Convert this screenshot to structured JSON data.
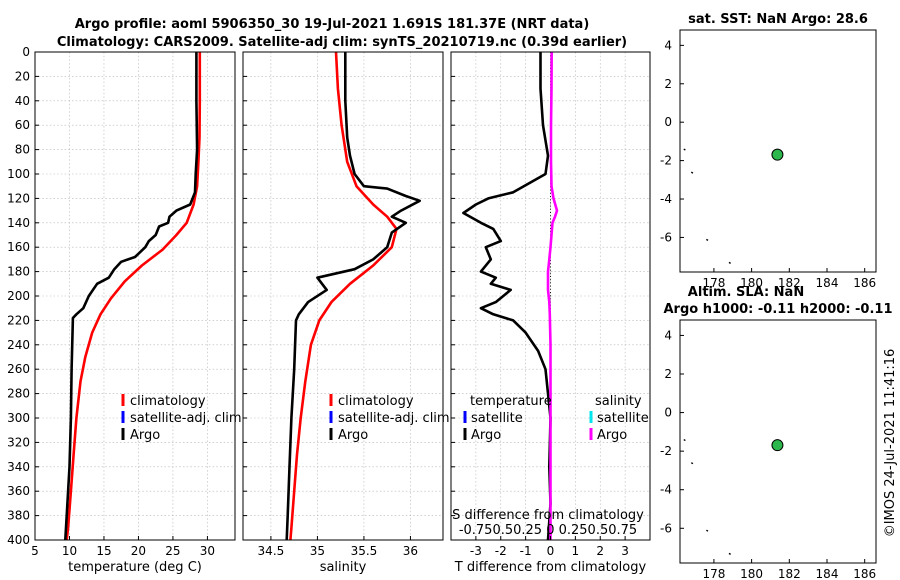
{
  "chart_data": [
    {
      "type": "line",
      "id": "temperature",
      "title_lines": [
        "Argo profile: aoml 5906350_30 19-Jul-2021 1.691S 181.37E (NRT data)",
        "Climatology: CARS2009. Satellite-adj clim: synTS_20210719.nc (0.39d earlier)"
      ],
      "xlabel": "temperature (deg C)",
      "xlim": [
        5,
        34
      ],
      "xticks": [
        5,
        10,
        15,
        20,
        25,
        30
      ],
      "ylim": [
        0,
        400
      ],
      "yticks": [
        0,
        20,
        40,
        60,
        80,
        100,
        120,
        140,
        160,
        180,
        200,
        220,
        240,
        260,
        280,
        300,
        320,
        340,
        360,
        380,
        400
      ],
      "grid": true,
      "legend": [
        "climatology",
        "satellite-adj. clim",
        "Argo"
      ],
      "series": [
        {
          "name": "climatology",
          "color": "#ff0000",
          "width": 2.6,
          "points": [
            [
              28.9,
              0
            ],
            [
              28.9,
              40
            ],
            [
              28.85,
              70
            ],
            [
              28.7,
              90
            ],
            [
              28.5,
              110
            ],
            [
              28.0,
              125
            ],
            [
              27.0,
              140
            ],
            [
              25.5,
              150
            ],
            [
              23.5,
              162
            ],
            [
              20.5,
              175
            ],
            [
              18.0,
              188
            ],
            [
              16.0,
              202
            ],
            [
              14.5,
              215
            ],
            [
              13.3,
              230
            ],
            [
              12.3,
              250
            ],
            [
              11.6,
              270
            ],
            [
              11.0,
              300
            ],
            [
              10.6,
              330
            ],
            [
              10.2,
              360
            ],
            [
              9.8,
              390
            ],
            [
              9.6,
              400
            ]
          ]
        },
        {
          "name": "Argo",
          "color": "#000000",
          "width": 2.6,
          "points": [
            [
              28.4,
              0
            ],
            [
              28.4,
              40
            ],
            [
              28.5,
              80
            ],
            [
              28.3,
              100
            ],
            [
              28.2,
              115
            ],
            [
              27.5,
              125
            ],
            [
              25.5,
              130
            ],
            [
              24.5,
              135
            ],
            [
              24.3,
              140
            ],
            [
              23.0,
              143
            ],
            [
              22.5,
              150
            ],
            [
              21.5,
              155
            ],
            [
              21.0,
              160
            ],
            [
              19.5,
              168
            ],
            [
              17.5,
              172
            ],
            [
              16.5,
              178
            ],
            [
              15.7,
              185
            ],
            [
              14.0,
              190
            ],
            [
              12.8,
              200
            ],
            [
              12.0,
              210
            ],
            [
              11.0,
              215
            ],
            [
              10.5,
              218
            ],
            [
              10.3,
              260
            ],
            [
              10.2,
              300
            ],
            [
              10.0,
              340
            ],
            [
              9.7,
              370
            ],
            [
              9.4,
              400
            ]
          ]
        }
      ]
    },
    {
      "type": "line",
      "id": "salinity",
      "xlabel": "salinity",
      "xlim": [
        34.2,
        36.35
      ],
      "xticks": [
        34.5,
        35,
        35.5,
        36
      ],
      "xtick_labels": [
        "34.5",
        "35",
        "35.5",
        "36"
      ],
      "ylim": [
        0,
        400
      ],
      "grid": true,
      "legend": [
        "climatology",
        "satellite-adj. clim",
        "Argo"
      ],
      "series": [
        {
          "name": "climatology",
          "color": "#ff0000",
          "width": 2.6,
          "points": [
            [
              35.2,
              0
            ],
            [
              35.22,
              30
            ],
            [
              35.26,
              60
            ],
            [
              35.32,
              90
            ],
            [
              35.42,
              110
            ],
            [
              35.6,
              125
            ],
            [
              35.75,
              135
            ],
            [
              35.85,
              145
            ],
            [
              35.8,
              160
            ],
            [
              35.6,
              175
            ],
            [
              35.35,
              190
            ],
            [
              35.15,
              205
            ],
            [
              35.02,
              220
            ],
            [
              34.93,
              240
            ],
            [
              34.87,
              270
            ],
            [
              34.82,
              300
            ],
            [
              34.78,
              330
            ],
            [
              34.75,
              360
            ],
            [
              34.72,
              390
            ],
            [
              34.71,
              400
            ]
          ]
        },
        {
          "name": "Argo",
          "color": "#000000",
          "width": 2.6,
          "points": [
            [
              35.3,
              0
            ],
            [
              35.3,
              40
            ],
            [
              35.32,
              70
            ],
            [
              35.35,
              85
            ],
            [
              35.4,
              100
            ],
            [
              35.5,
              110
            ],
            [
              35.75,
              112
            ],
            [
              35.95,
              118
            ],
            [
              36.1,
              122
            ],
            [
              35.9,
              130
            ],
            [
              35.8,
              135
            ],
            [
              35.95,
              140
            ],
            [
              35.8,
              148
            ],
            [
              35.75,
              160
            ],
            [
              35.6,
              170
            ],
            [
              35.4,
              178
            ],
            [
              35.0,
              185
            ],
            [
              35.1,
              195
            ],
            [
              34.9,
              205
            ],
            [
              34.8,
              215
            ],
            [
              34.77,
              220
            ],
            [
              34.75,
              260
            ],
            [
              34.72,
              300
            ],
            [
              34.7,
              340
            ],
            [
              34.68,
              380
            ],
            [
              34.67,
              400
            ]
          ]
        }
      ]
    },
    {
      "type": "line",
      "id": "difference",
      "xlabel": "T difference from climatology",
      "xlim": [
        -4,
        4
      ],
      "xticks": [
        -3,
        -2,
        -1,
        0,
        1,
        2,
        3
      ],
      "xtick_labels": [
        "-3",
        "-2",
        "-1",
        "0",
        "1",
        "2",
        "3"
      ],
      "ylim": [
        0,
        400
      ],
      "grid": true,
      "annotation_lines": [
        "S difference from climatology",
        "-0.750.50.25 0  0.250.50.75"
      ],
      "legend_headers": [
        "temperature",
        "salinity"
      ],
      "legend_temperature": [
        "satellite",
        "Argo"
      ],
      "legend_salinity": [
        "satellite",
        "Argo"
      ],
      "series": [
        {
          "name": "T Argo",
          "color": "#000000",
          "width": 2.6,
          "points": [
            [
              -0.4,
              0
            ],
            [
              -0.4,
              30
            ],
            [
              -0.3,
              60
            ],
            [
              -0.1,
              85
            ],
            [
              -0.2,
              100
            ],
            [
              -1.5,
              115
            ],
            [
              -2.5,
              120
            ],
            [
              -3.0,
              125
            ],
            [
              -3.5,
              132
            ],
            [
              -2.8,
              140
            ],
            [
              -2.3,
              145
            ],
            [
              -2.0,
              155
            ],
            [
              -2.6,
              160
            ],
            [
              -2.4,
              170
            ],
            [
              -2.8,
              180
            ],
            [
              -2.2,
              185
            ],
            [
              -2.4,
              190
            ],
            [
              -1.6,
              195
            ],
            [
              -2.2,
              205
            ],
            [
              -2.8,
              210
            ],
            [
              -2.3,
              215
            ],
            [
              -1.5,
              220
            ],
            [
              -1.0,
              230
            ],
            [
              -0.5,
              245
            ],
            [
              -0.2,
              260
            ],
            [
              -0.1,
              280
            ],
            [
              0.0,
              300
            ],
            [
              -0.05,
              340
            ],
            [
              0.0,
              370
            ],
            [
              -0.1,
              400
            ]
          ]
        },
        {
          "name": "S Argo",
          "color": "#ff00ff",
          "width": 2.6,
          "points": [
            [
              0.05,
              0
            ],
            [
              0.04,
              30
            ],
            [
              0.02,
              60
            ],
            [
              0.02,
              90
            ],
            [
              0.04,
              110
            ],
            [
              0.12,
              120
            ],
            [
              0.26,
              130
            ],
            [
              0.18,
              135
            ],
            [
              0.08,
              140
            ],
            [
              0.04,
              150
            ],
            [
              0.0,
              160
            ],
            [
              -0.05,
              170
            ],
            [
              -0.1,
              180
            ],
            [
              -0.1,
              195
            ],
            [
              -0.05,
              205
            ],
            [
              -0.03,
              215
            ],
            [
              0.0,
              240
            ],
            [
              0.0,
              280
            ],
            [
              0.0,
              320
            ],
            [
              0.0,
              360
            ],
            [
              0.0,
              400
            ]
          ]
        }
      ]
    },
    {
      "type": "scatter",
      "id": "sst-map",
      "title": "sat. SST: NaN Argo: 28.6",
      "xlim": [
        176.2,
        186.6
      ],
      "ylim": [
        -7.8,
        4.8
      ],
      "xticks": [
        178,
        180,
        182,
        184,
        186
      ],
      "yticks": [
        4,
        2,
        0,
        -2,
        -4,
        -6
      ],
      "ytick_labels": [
        "4",
        "2",
        "0",
        "-2",
        "-4",
        "-6"
      ],
      "marker": {
        "x": 181.37,
        "y": -1.691,
        "color": "#2db84d"
      },
      "dots": [
        [
          176.4,
          -1.4
        ],
        [
          176.8,
          -2.6
        ],
        [
          177.6,
          -6.1
        ],
        [
          178.8,
          -7.3
        ]
      ]
    },
    {
      "type": "scatter",
      "id": "sla-map",
      "title_lines": [
        "Altim. SLA: NaN",
        "Argo h1000: -0.11 h2000: -0.11"
      ],
      "xlim": [
        176.2,
        186.6
      ],
      "ylim": [
        -7.8,
        4.8
      ],
      "xticks": [
        178,
        180,
        182,
        184,
        186
      ],
      "yticks": [
        4,
        2,
        0,
        -2,
        -4,
        -6
      ],
      "ytick_labels": [
        "4",
        "2",
        "0",
        "-2",
        "-4",
        "-6"
      ],
      "marker": {
        "x": 181.37,
        "y": -1.691,
        "color": "#2db84d"
      },
      "dots": [
        [
          176.4,
          -1.4
        ],
        [
          176.8,
          -2.6
        ],
        [
          177.6,
          -6.1
        ],
        [
          178.8,
          -7.3
        ]
      ]
    }
  ],
  "watermark": "©IMOS 24-Jul-2021 11:41:16",
  "legend_colors": {
    "climatology": "#ff0000",
    "satellite-adj. clim": "#0000ff",
    "Argo": "#000000",
    "T satellite": "#0000ff",
    "S satellite": "#00e5ee",
    "S Argo": "#ff00ff"
  }
}
